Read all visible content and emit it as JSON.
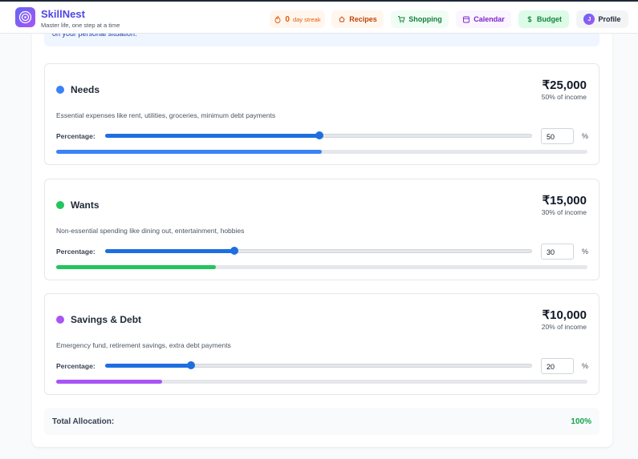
{
  "header": {
    "title": "SkillNest",
    "tagline": "Master life, one step at a time",
    "streak": {
      "count": 0,
      "label": "day streak"
    },
    "nav": [
      "Recipes",
      "Shopping",
      "Calendar",
      "Budget"
    ],
    "profile": {
      "initial": "J",
      "label": "Profile"
    }
  },
  "banner": {
    "text": "on your personal situation."
  },
  "categories": [
    {
      "name": "Needs",
      "color": "#3b82f6",
      "amount": "₹25,000",
      "share": "50% of income",
      "description": "Essential expenses like rent, utilities, groceries, minimum debt payments",
      "percentage_label": "Percentage:",
      "percentage": 50,
      "unit": "%"
    },
    {
      "name": "Wants",
      "color": "#22c55e",
      "amount": "₹15,000",
      "share": "30% of income",
      "description": "Non-essential spending like dining out, entertainment, hobbies",
      "percentage_label": "Percentage:",
      "percentage": 30,
      "unit": "%"
    },
    {
      "name": "Savings & Debt",
      "color": "#a855f7",
      "amount": "₹10,000",
      "share": "20% of income",
      "description": "Emergency fund, retirement savings, extra debt payments",
      "percentage_label": "Percentage:",
      "percentage": 20,
      "unit": "%"
    }
  ],
  "total": {
    "label": "Total Allocation:",
    "value": "100%"
  }
}
